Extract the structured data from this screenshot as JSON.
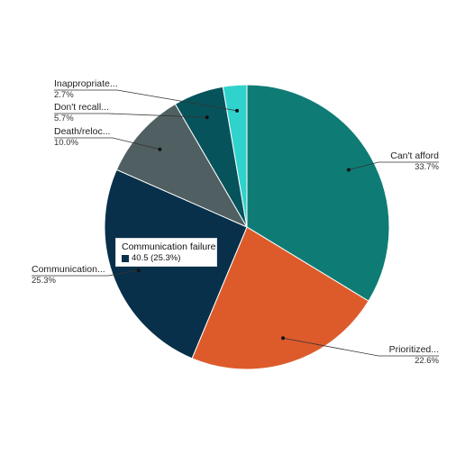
{
  "chart_data": {
    "type": "pie",
    "title": "",
    "slices": [
      {
        "label": "Can't afford",
        "percent_label": "33.7%",
        "value": 33.7,
        "color": "#0e7c74"
      },
      {
        "label": "Prioritized...",
        "percent_label": "22.6%",
        "value": 22.6,
        "color": "#dd5b2b"
      },
      {
        "label": "Communication...",
        "percent_label": "25.3%",
        "value": 25.3,
        "color": "#08304a"
      },
      {
        "label": "Death/reloc...",
        "percent_label": "10.0%",
        "value": 10.0,
        "color": "#505f62"
      },
      {
        "label": "Don't recall...",
        "percent_label": "5.7%",
        "value": 5.7,
        "color": "#07535b"
      },
      {
        "label": "Inappropriate...",
        "percent_label": "2.7%",
        "value": 2.7,
        "color": "#2fd3cc"
      }
    ],
    "start_angle_deg": 0,
    "direction": "clockwise",
    "legend": "none"
  },
  "tooltip": {
    "title": "Communication failure",
    "value_text": "40.5 (25.3%)",
    "swatch_color": "#08304a"
  }
}
